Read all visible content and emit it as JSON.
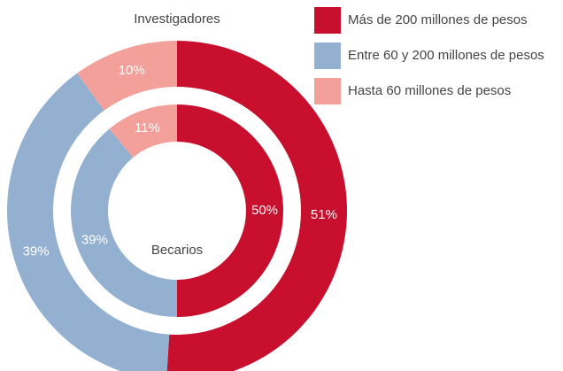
{
  "chart_data": {
    "type": "donut",
    "categories": [
      "Más de 200 millones de pesos",
      "Entre 60 y 200 millones de pesos",
      "Hasta 60 millones de pesos"
    ],
    "colors": [
      "#c8102e",
      "#94b0d0",
      "#f4a09a"
    ],
    "series": [
      {
        "name": "Investigadores",
        "values": [
          51,
          39,
          10
        ],
        "value_labels": [
          "51%",
          "39%",
          "10%"
        ]
      },
      {
        "name": "Becarios",
        "values": [
          50,
          39,
          11
        ],
        "value_labels": [
          "50%",
          "39%",
          "11%"
        ]
      }
    ]
  }
}
